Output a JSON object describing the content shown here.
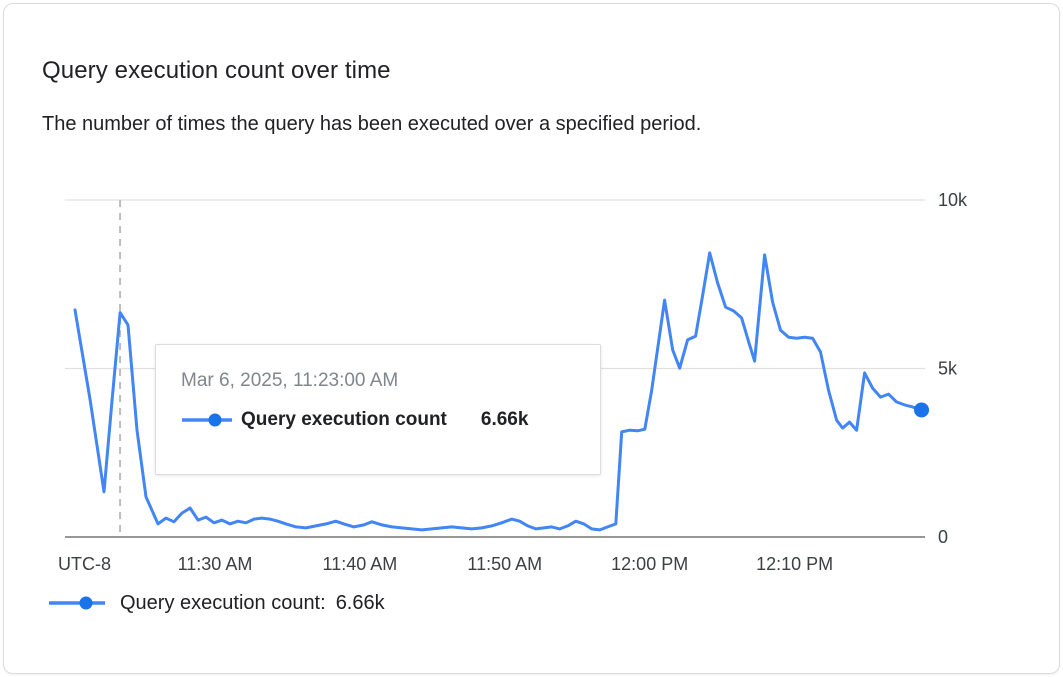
{
  "card": {
    "title": "Query execution count over time",
    "subtitle": "The number of times the query has been executed over a specified period."
  },
  "tooltip": {
    "date": "Mar 6, 2025, 11:23:00 AM",
    "series_label": "Query execution count",
    "value": "6.66k"
  },
  "legend": {
    "label": "Query execution count:",
    "value": "6.66k"
  },
  "colors": {
    "line": "#4285F4",
    "dot": "#1A73E8",
    "gridline": "#E0E0E0",
    "axis_line": "#757575",
    "crosshair": "#BDBDBD",
    "tick_text": "#3C4043"
  },
  "chart_data": {
    "type": "line",
    "title": "Query execution count over time",
    "series_name": "Query execution count",
    "x_unit": "minutes after 11:20 AM, Mar 6, 2025 (UTC-8)",
    "y_unit": "executions (thousands)",
    "x_range": [
      -0.35,
      59
    ],
    "y_range": [
      0,
      10
    ],
    "grid": "horizontal-only",
    "legend_position": "bottom-left",
    "timezone_label": "UTC-8",
    "x_ticks": [
      {
        "value": 10,
        "label": "11:30 AM"
      },
      {
        "value": 20,
        "label": "11:40 AM"
      },
      {
        "value": 30,
        "label": "11:50 AM"
      },
      {
        "value": 40,
        "label": "12:00 PM"
      },
      {
        "value": 50,
        "label": "12:10 PM"
      }
    ],
    "y_ticks": [
      {
        "value": 0,
        "label": "0"
      },
      {
        "value": 5,
        "label": "5k"
      },
      {
        "value": 10,
        "label": "10k"
      }
    ],
    "hover": {
      "x": 3.45,
      "time": "Mar 6, 2025, 11:23:00 AM",
      "value_k": 6.66
    },
    "points": [
      [
        0.34,
        6.74
      ],
      [
        1.38,
        4.07
      ],
      [
        2.34,
        1.34
      ],
      [
        2.9,
        4.07
      ],
      [
        3.45,
        6.66
      ],
      [
        4.0,
        6.29
      ],
      [
        4.62,
        3.17
      ],
      [
        5.24,
        1.19
      ],
      [
        6.07,
        0.39
      ],
      [
        6.62,
        0.56
      ],
      [
        7.17,
        0.45
      ],
      [
        7.72,
        0.71
      ],
      [
        8.28,
        0.86
      ],
      [
        8.83,
        0.5
      ],
      [
        9.38,
        0.59
      ],
      [
        9.93,
        0.42
      ],
      [
        10.48,
        0.5
      ],
      [
        11.03,
        0.39
      ],
      [
        11.59,
        0.47
      ],
      [
        12.14,
        0.42
      ],
      [
        12.69,
        0.53
      ],
      [
        13.24,
        0.56
      ],
      [
        13.79,
        0.53
      ],
      [
        14.34,
        0.47
      ],
      [
        14.9,
        0.39
      ],
      [
        15.59,
        0.3
      ],
      [
        16.28,
        0.27
      ],
      [
        16.97,
        0.33
      ],
      [
        17.66,
        0.39
      ],
      [
        18.34,
        0.47
      ],
      [
        18.9,
        0.39
      ],
      [
        19.59,
        0.3
      ],
      [
        20.28,
        0.36
      ],
      [
        20.83,
        0.45
      ],
      [
        21.52,
        0.36
      ],
      [
        22.21,
        0.3
      ],
      [
        22.9,
        0.27
      ],
      [
        23.59,
        0.24
      ],
      [
        24.28,
        0.21
      ],
      [
        24.97,
        0.24
      ],
      [
        25.66,
        0.27
      ],
      [
        26.34,
        0.3
      ],
      [
        27.03,
        0.27
      ],
      [
        27.72,
        0.24
      ],
      [
        28.41,
        0.27
      ],
      [
        29.1,
        0.33
      ],
      [
        29.79,
        0.42
      ],
      [
        30.48,
        0.53
      ],
      [
        31.03,
        0.47
      ],
      [
        31.59,
        0.33
      ],
      [
        32.14,
        0.24
      ],
      [
        32.69,
        0.27
      ],
      [
        33.24,
        0.3
      ],
      [
        33.79,
        0.24
      ],
      [
        34.34,
        0.33
      ],
      [
        34.9,
        0.47
      ],
      [
        35.45,
        0.39
      ],
      [
        36.0,
        0.24
      ],
      [
        36.55,
        0.21
      ],
      [
        37.1,
        0.3
      ],
      [
        37.66,
        0.39
      ],
      [
        38.07,
        3.12
      ],
      [
        38.62,
        3.17
      ],
      [
        39.17,
        3.15
      ],
      [
        39.66,
        3.2
      ],
      [
        40.14,
        4.36
      ],
      [
        41.03,
        7.03
      ],
      [
        41.59,
        5.55
      ],
      [
        42.07,
        5.01
      ],
      [
        42.62,
        5.85
      ],
      [
        43.17,
        5.96
      ],
      [
        43.66,
        7.18
      ],
      [
        44.14,
        8.43
      ],
      [
        44.69,
        7.54
      ],
      [
        45.24,
        6.82
      ],
      [
        45.79,
        6.71
      ],
      [
        46.34,
        6.5
      ],
      [
        46.83,
        5.79
      ],
      [
        47.24,
        5.22
      ],
      [
        47.93,
        8.37
      ],
      [
        48.48,
        6.97
      ],
      [
        49.03,
        6.14
      ],
      [
        49.59,
        5.93
      ],
      [
        50.14,
        5.9
      ],
      [
        50.69,
        5.93
      ],
      [
        51.24,
        5.9
      ],
      [
        51.79,
        5.49
      ],
      [
        52.34,
        4.36
      ],
      [
        52.9,
        3.47
      ],
      [
        53.31,
        3.23
      ],
      [
        53.79,
        3.41
      ],
      [
        54.28,
        3.17
      ],
      [
        54.83,
        4.87
      ],
      [
        55.38,
        4.42
      ],
      [
        55.93,
        4.15
      ],
      [
        56.48,
        4.24
      ],
      [
        57.03,
        4.01
      ],
      [
        57.59,
        3.92
      ],
      [
        58.14,
        3.86
      ],
      [
        58.76,
        3.77
      ]
    ]
  }
}
